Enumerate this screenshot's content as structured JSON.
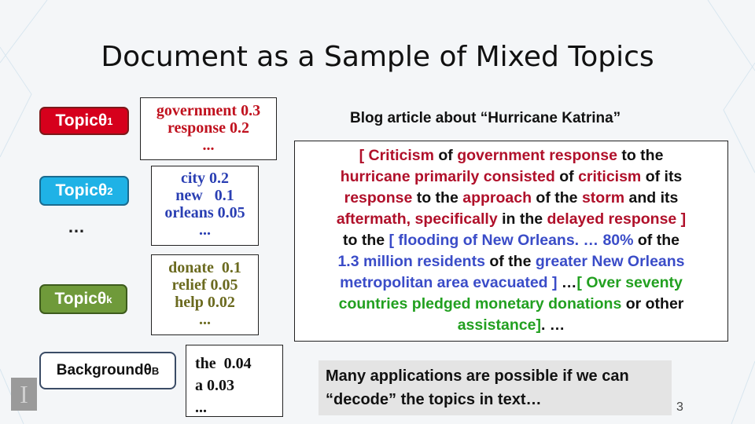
{
  "title": "Document as a Sample of Mixed  Topics",
  "topics": {
    "t1": {
      "label": "Topic ",
      "theta": "θ",
      "sub": "1"
    },
    "t2": {
      "label": "Topic ",
      "theta": "θ",
      "sub": "2"
    },
    "tk": {
      "label": "Topic ",
      "theta": "θ",
      "sub": "k"
    },
    "tb": {
      "label": "Background ",
      "theta": "θ",
      "sub": "B"
    }
  },
  "ellipsis": "…",
  "word_lists": {
    "t1": [
      "government 0.3",
      "response  0.2",
      "..."
    ],
    "t2": [
      "city 0.2",
      "new   0.1",
      "orleans 0.05",
      "..."
    ],
    "tk": [
      "donate  0.1",
      "relief 0.05",
      "help 0.02",
      "..."
    ],
    "tb": [
      "the  0.04",
      "a 0.03",
      "..."
    ]
  },
  "blog_title": "Blog article about “Hurricane Katrina”",
  "article": {
    "l1": [
      "[ Criticism",
      " of ",
      "government response",
      " to the"
    ],
    "l2": [
      "hurricane primarily consisted",
      " of ",
      "criticism",
      " of its"
    ],
    "l3": [
      "response",
      " to the ",
      "approach",
      " of the ",
      "storm",
      " and its"
    ],
    "l4": [
      "aftermath, specifically",
      " in the ",
      "delayed response ]"
    ],
    "l5": [
      "to the ",
      "[ flooding of New Orleans. … 80%",
      " of the"
    ],
    "l6": [
      "1.3 million residents",
      " of the ",
      "greater New Orleans"
    ],
    "l7": [
      "metropolitan area evacuated ]",
      " …",
      "[ Over seventy"
    ],
    "l8": [
      "countries pledged monetary donations",
      " or other"
    ],
    "l9": [
      "assistance]",
      ". …"
    ]
  },
  "note": [
    "Many applications are possible if we can",
    "“decode” the topics in text…"
  ],
  "page_number": "3",
  "colors": {
    "red": "#b0102a",
    "blue": "#3a4cc8",
    "green": "#22a020"
  }
}
